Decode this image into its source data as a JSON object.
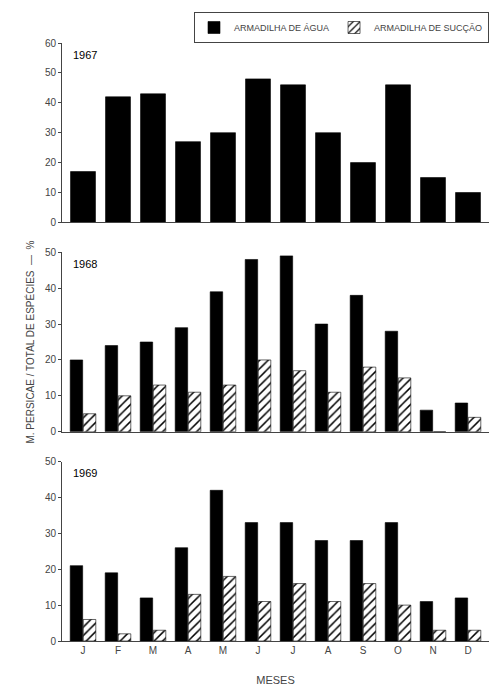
{
  "chart_data": [
    {
      "type": "bar",
      "title": "1967",
      "categories": [
        "J",
        "F",
        "M",
        "A",
        "M",
        "J",
        "J",
        "A",
        "S",
        "O",
        "N",
        "D"
      ],
      "series": [
        {
          "name": "ARMADILHA DE ÁGUA",
          "color": "#000000",
          "values": [
            17,
            42,
            43,
            27,
            30,
            48,
            46,
            30,
            20,
            46,
            15,
            10
          ]
        },
        {
          "name": "ARMADILHA DE SUCÇÃO",
          "color": "#ffffff",
          "values": [
            null,
            null,
            null,
            null,
            null,
            null,
            null,
            null,
            null,
            null,
            null,
            null
          ]
        }
      ],
      "ylim": [
        0,
        60
      ],
      "yticks": [
        0,
        10,
        20,
        30,
        40,
        50,
        60
      ],
      "grid": false,
      "legend": "upper right",
      "tick_labels": "y"
    },
    {
      "type": "bar",
      "title": "1968",
      "categories": [
        "J",
        "F",
        "M",
        "A",
        "M",
        "J",
        "J",
        "A",
        "S",
        "O",
        "N",
        "D"
      ],
      "series": [
        {
          "name": "ARMADILHA DE ÁGUA",
          "color": "#000000",
          "values": [
            20,
            24,
            25,
            29,
            39,
            48,
            49,
            30,
            38,
            28,
            6,
            8
          ]
        },
        {
          "name": "ARMADILHA DE SUCÇÃO",
          "color": "#ffffff",
          "values": [
            5,
            10,
            13,
            11,
            13,
            20,
            17,
            11,
            18,
            15,
            0,
            4
          ]
        }
      ],
      "ylabel": "M. PERSICAE / TOTAL DE ESPÉCIES  —  %",
      "ylim": [
        0,
        50
      ],
      "yticks": [
        0,
        10,
        20,
        30,
        40,
        50
      ],
      "grid": false,
      "tick_labels": "y"
    },
    {
      "type": "bar",
      "title": "1969",
      "categories": [
        "J",
        "F",
        "M",
        "A",
        "M",
        "J",
        "J",
        "A",
        "S",
        "O",
        "N",
        "D"
      ],
      "series": [
        {
          "name": "ARMADILHA DE ÁGUA",
          "color": "#000000",
          "values": [
            21,
            19,
            12,
            26,
            42,
            33,
            33,
            28,
            28,
            33,
            11,
            12
          ]
        },
        {
          "name": "ARMADILHA DE SUCÇÃO",
          "color": "#ffffff",
          "values": [
            6,
            2,
            3,
            13,
            18,
            11,
            16,
            11,
            16,
            10,
            3,
            3
          ]
        }
      ],
      "xlabel": "MESES",
      "ylim": [
        0,
        50
      ],
      "yticks": [
        0,
        10,
        20,
        30,
        40,
        50
      ],
      "grid": false
    }
  ]
}
